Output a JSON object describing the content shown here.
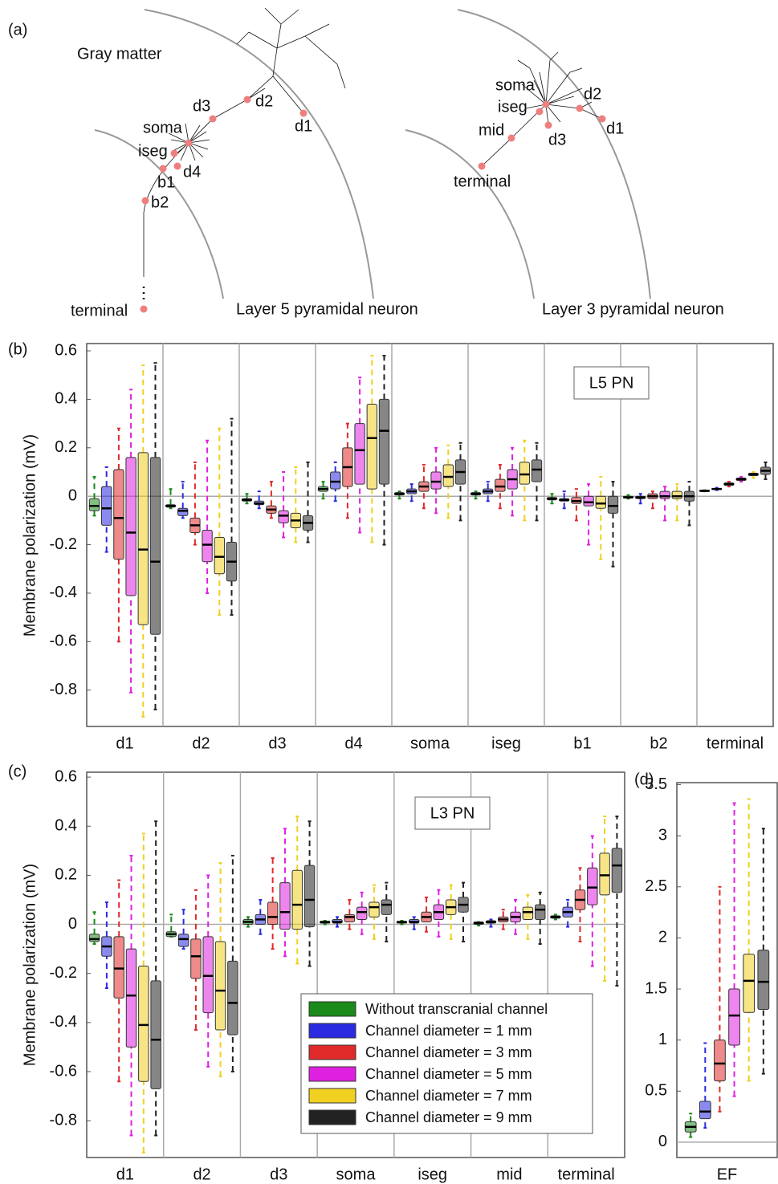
{
  "panel_a": {
    "label": "(a)",
    "region": "Gray matter",
    "layer5": {
      "title": "Layer 5 pyramidal neuron",
      "sites": [
        "soma",
        "iseg",
        "b1",
        "d4",
        "b2",
        "terminal",
        "d3",
        "d2",
        "d1"
      ]
    },
    "layer3": {
      "title": "Layer 3 pyramidal neuron",
      "sites": [
        "soma",
        "iseg",
        "mid",
        "d3",
        "d2",
        "d1",
        "terminal"
      ]
    }
  },
  "chart_data": [
    {
      "type": "box",
      "panel_label": "(b)",
      "y_label": "Membrane polarization (mV)",
      "annotation": "L5 PN",
      "categories": [
        "d1",
        "d2",
        "d3",
        "d4",
        "soma",
        "iseg",
        "b1",
        "b2",
        "terminal"
      ],
      "ylim": [
        -0.95,
        0.63
      ],
      "yticks": [
        -0.8,
        -0.6,
        -0.4,
        -0.2,
        0,
        0.2,
        0.4,
        0.6
      ],
      "series": [
        {
          "color": "#1a8a1a",
          "values": [
            [
              -0.08,
              -0.06,
              -0.04,
              -0.01,
              0.08
            ],
            [
              -0.05,
              -0.045,
              -0.04,
              -0.035,
              0.03
            ],
            [
              -0.03,
              -0.02,
              -0.015,
              -0.01,
              0.01
            ],
            [
              -0.01,
              0.02,
              0.03,
              0.04,
              0.06
            ],
            [
              -0.01,
              0.005,
              0.01,
              0.015,
              0.02
            ],
            [
              -0.01,
              0.005,
              0.01,
              0.015,
              0.02
            ],
            [
              -0.03,
              -0.015,
              -0.01,
              -0.005,
              0.01
            ],
            [
              -0.01,
              -0.005,
              -0.005,
              0,
              0.005
            ],
            [
              0.02,
              0.02,
              0.022,
              0.025,
              0.025
            ]
          ]
        },
        {
          "color": "#2a2ae0",
          "values": [
            [
              -0.23,
              -0.12,
              -0.05,
              0.04,
              0.12
            ],
            [
              -0.09,
              -0.08,
              -0.06,
              -0.05,
              0.06
            ],
            [
              -0.05,
              -0.035,
              -0.03,
              -0.02,
              0.02
            ],
            [
              -0.02,
              0.03,
              0.06,
              0.1,
              0.14
            ],
            [
              -0.02,
              0.01,
              0.02,
              0.03,
              0.05
            ],
            [
              -0.02,
              0.01,
              0.02,
              0.03,
              0.06
            ],
            [
              -0.05,
              -0.02,
              -0.015,
              -0.01,
              0.02
            ],
            [
              -0.03,
              -0.01,
              -0.005,
              0,
              0.01
            ],
            [
              0.025,
              0.028,
              0.03,
              0.032,
              0.035
            ]
          ]
        },
        {
          "color": "#e02a2a",
          "values": [
            [
              -0.6,
              -0.26,
              -0.09,
              0.11,
              0.28
            ],
            [
              -0.2,
              -0.15,
              -0.12,
              -0.09,
              0.14
            ],
            [
              -0.09,
              -0.07,
              -0.055,
              -0.04,
              0.06
            ],
            [
              -0.09,
              0.04,
              0.12,
              0.2,
              0.3
            ],
            [
              -0.05,
              0.02,
              0.04,
              0.06,
              0.13
            ],
            [
              -0.05,
              0.02,
              0.04,
              0.07,
              0.13
            ],
            [
              -0.1,
              -0.03,
              -0.02,
              -0.005,
              0.03
            ],
            [
              -0.05,
              -0.01,
              0,
              0.01,
              0.02
            ],
            [
              0.04,
              0.045,
              0.05,
              0.055,
              0.06
            ]
          ]
        },
        {
          "color": "#e020e0",
          "values": [
            [
              -0.81,
              -0.41,
              -0.15,
              0.16,
              0.44
            ],
            [
              -0.4,
              -0.27,
              -0.2,
              -0.14,
              0.23
            ],
            [
              -0.17,
              -0.11,
              -0.08,
              -0.06,
              0.1
            ],
            [
              -0.15,
              0.05,
              0.19,
              0.3,
              0.49
            ],
            [
              -0.07,
              0.03,
              0.06,
              0.1,
              0.2
            ],
            [
              -0.08,
              0.03,
              0.07,
              0.11,
              0.2
            ],
            [
              -0.2,
              -0.04,
              -0.025,
              0,
              0.05
            ],
            [
              -0.1,
              -0.01,
              0,
              0.02,
              0.04
            ],
            [
              0.06,
              0.065,
              0.07,
              0.075,
              0.08
            ]
          ]
        },
        {
          "color": "#f0d020",
          "values": [
            [
              -0.91,
              -0.53,
              -0.22,
              0.18,
              0.54
            ],
            [
              -0.49,
              -0.32,
              -0.25,
              -0.17,
              0.28
            ],
            [
              -0.19,
              -0.13,
              -0.1,
              -0.07,
              0.12
            ],
            [
              -0.19,
              0.03,
              0.24,
              0.38,
              0.58
            ],
            [
              -0.09,
              0.04,
              0.08,
              0.13,
              0.21
            ],
            [
              -0.1,
              0.05,
              0.09,
              0.14,
              0.23
            ],
            [
              -0.26,
              -0.05,
              -0.03,
              0,
              0.08
            ],
            [
              -0.1,
              -0.01,
              0,
              0.02,
              0.05
            ],
            [
              0.075,
              0.085,
              0.09,
              0.095,
              0.1
            ]
          ]
        },
        {
          "color": "#222222",
          "values": [
            [
              -0.88,
              -0.57,
              -0.27,
              0.16,
              0.55
            ],
            [
              -0.49,
              -0.35,
              -0.27,
              -0.19,
              0.32
            ],
            [
              -0.19,
              -0.14,
              -0.11,
              -0.08,
              0.14
            ],
            [
              -0.2,
              0.05,
              0.27,
              0.4,
              0.58
            ],
            [
              -0.1,
              0.05,
              0.1,
              0.15,
              0.22
            ],
            [
              -0.1,
              0.06,
              0.11,
              0.15,
              0.22
            ],
            [
              -0.29,
              -0.07,
              -0.04,
              0,
              0.06
            ],
            [
              -0.12,
              -0.02,
              0,
              0.02,
              0.06
            ],
            [
              0.07,
              0.09,
              0.105,
              0.12,
              0.14
            ]
          ]
        }
      ]
    },
    {
      "type": "box",
      "panel_label": "(c)",
      "y_label": "Membrane polarization (mV)",
      "annotation": "L3 PN",
      "categories": [
        "d1",
        "d2",
        "d3",
        "soma",
        "iseg",
        "mid",
        "terminal"
      ],
      "ylim": [
        -0.95,
        0.62
      ],
      "yticks": [
        -0.8,
        -0.6,
        -0.4,
        -0.2,
        0,
        0.2,
        0.4,
        0.6
      ],
      "series": [
        {
          "name": "Without transcranial channel",
          "color": "#1a8a1a",
          "values": [
            [
              -0.08,
              -0.07,
              -0.06,
              -0.04,
              0.05
            ],
            [
              -0.05,
              -0.05,
              -0.04,
              -0.03,
              0.04
            ],
            [
              -0.01,
              0,
              0.01,
              0.02,
              0.03
            ],
            [
              0,
              0.005,
              0.01,
              0.01,
              0.015
            ],
            [
              0,
              0.005,
              0.01,
              0.01,
              0.015
            ],
            [
              -0.005,
              0,
              0.005,
              0.01,
              0.01
            ],
            [
              0.02,
              0.025,
              0.03,
              0.035,
              0.04
            ]
          ]
        },
        {
          "name": "Channel diameter = 1 mm",
          "color": "#2a2ae0",
          "values": [
            [
              -0.26,
              -0.13,
              -0.09,
              -0.05,
              0.09
            ],
            [
              -0.1,
              -0.09,
              -0.06,
              -0.04,
              0.06
            ],
            [
              -0.04,
              0,
              0.02,
              0.04,
              0.1
            ],
            [
              -0.01,
              0.005,
              0.01,
              0.02,
              0.03
            ],
            [
              -0.02,
              0.005,
              0.01,
              0.02,
              0.03
            ],
            [
              -0.01,
              0.005,
              0.01,
              0.015,
              0.02
            ],
            [
              -0.01,
              0.03,
              0.05,
              0.07,
              0.1
            ]
          ]
        },
        {
          "name": "Channel diameter = 3 mm",
          "color": "#e02a2a",
          "values": [
            [
              -0.64,
              -0.3,
              -0.18,
              -0.05,
              0.18
            ],
            [
              -0.43,
              -0.22,
              -0.13,
              -0.06,
              0.14
            ],
            [
              -0.1,
              0,
              0.03,
              0.09,
              0.27
            ],
            [
              -0.02,
              0.01,
              0.03,
              0.04,
              0.1
            ],
            [
              -0.03,
              0.01,
              0.03,
              0.05,
              0.11
            ],
            [
              -0.02,
              0.01,
              0.02,
              0.03,
              0.06
            ],
            [
              -0.07,
              0.06,
              0.1,
              0.14,
              0.23
            ]
          ]
        },
        {
          "name": "Channel diameter = 5 mm",
          "color": "#e020e0",
          "values": [
            [
              -0.86,
              -0.5,
              -0.29,
              -0.1,
              0.28
            ],
            [
              -0.58,
              -0.36,
              -0.21,
              -0.05,
              0.2
            ],
            [
              -0.13,
              -0.02,
              0.05,
              0.17,
              0.39
            ],
            [
              -0.04,
              0.02,
              0.05,
              0.07,
              0.13
            ],
            [
              -0.05,
              0.02,
              0.05,
              0.08,
              0.14
            ],
            [
              -0.04,
              0.01,
              0.03,
              0.05,
              0.1
            ],
            [
              -0.17,
              0.08,
              0.15,
              0.23,
              0.36
            ]
          ]
        },
        {
          "name": "Channel diameter = 7 mm",
          "color": "#f0d020",
          "values": [
            [
              -0.93,
              -0.64,
              -0.41,
              -0.17,
              0.37
            ],
            [
              -0.62,
              -0.43,
              -0.27,
              -0.07,
              0.25
            ],
            [
              -0.16,
              -0.02,
              0.08,
              0.22,
              0.44
            ],
            [
              -0.06,
              0.03,
              0.07,
              0.09,
              0.16
            ],
            [
              -0.06,
              0.04,
              0.07,
              0.1,
              0.16
            ],
            [
              -0.06,
              0.02,
              0.05,
              0.07,
              0.12
            ],
            [
              -0.23,
              0.12,
              0.2,
              0.29,
              0.44
            ]
          ]
        },
        {
          "name": "Channel diameter = 9 mm",
          "color": "#222222",
          "values": [
            [
              -0.86,
              -0.67,
              -0.47,
              -0.23,
              0.42
            ],
            [
              -0.6,
              -0.45,
              -0.32,
              -0.15,
              0.28
            ],
            [
              -0.17,
              -0.01,
              0.1,
              0.24,
              0.42
            ],
            [
              -0.07,
              0.04,
              0.08,
              0.1,
              0.17
            ],
            [
              -0.07,
              0.05,
              0.08,
              0.11,
              0.17
            ],
            [
              -0.08,
              0.02,
              0.06,
              0.08,
              0.13
            ],
            [
              -0.25,
              0.13,
              0.24,
              0.31,
              0.44
            ]
          ]
        }
      ]
    },
    {
      "type": "box",
      "panel_label": "(d)",
      "categories": [
        "EF"
      ],
      "ylim": [
        -0.15,
        3.52
      ],
      "yticks": [
        0,
        0.5,
        1,
        1.5,
        2,
        2.5,
        3,
        3.5
      ],
      "series": [
        {
          "color": "#1a8a1a",
          "values": [
            [
              0.05,
              0.1,
              0.15,
              0.2,
              0.28
            ]
          ]
        },
        {
          "color": "#2a2ae0",
          "values": [
            [
              0.14,
              0.23,
              0.3,
              0.4,
              0.97
            ]
          ]
        },
        {
          "color": "#e02a2a",
          "values": [
            [
              0.3,
              0.6,
              0.77,
              1.0,
              2.5
            ]
          ]
        },
        {
          "color": "#e020e0",
          "values": [
            [
              0.45,
              0.95,
              1.24,
              1.5,
              3.32
            ]
          ]
        },
        {
          "color": "#f0d020",
          "values": [
            [
              0.6,
              1.27,
              1.58,
              1.84,
              3.36
            ]
          ]
        },
        {
          "color": "#222222",
          "values": [
            [
              0.67,
              1.3,
              1.57,
              1.88,
              3.07
            ]
          ]
        }
      ]
    }
  ]
}
